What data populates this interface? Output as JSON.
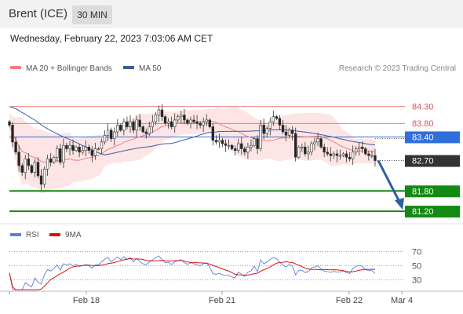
{
  "header": {
    "title": "Brent (ICE)",
    "timeframe": "30 MIN"
  },
  "subtitle": "Wednesday, February 22, 2023 7:03:06 AM CET",
  "colors": {
    "ma20": "#f08080",
    "band": "#fde0e0",
    "ma50": "#3a5f9f",
    "pivot": "#2f6fdb",
    "support": "#138a13",
    "resistance": "#e05050",
    "up_candle": "#ffffff",
    "down_candle": "#222222",
    "arrow": "#2f5f9f",
    "rsi": "#5b80d8",
    "rsi_ma": "#e01010"
  },
  "chart_data": [
    {
      "type": "candlestick",
      "legend": [
        {
          "name": "MA 20 + Bollinger Bands",
          "color": "#f08080"
        },
        {
          "name": "MA 50",
          "color": "#3a5f9f"
        }
      ],
      "credit": "Research © 2023 Trading Central",
      "ylim": [
        80.9,
        85.2
      ],
      "x_ticks": [
        "Feb 18",
        "Feb 21",
        "Feb 22",
        "Mar 4"
      ],
      "levels": [
        {
          "value": 84.3,
          "label": "84.30",
          "kind": "resistance"
        },
        {
          "value": 83.8,
          "label": "83.80",
          "kind": "resistance"
        },
        {
          "value": 83.4,
          "label": "83.40",
          "kind": "pivot"
        },
        {
          "value": 82.7,
          "label": "82.70",
          "kind": "last"
        },
        {
          "value": 81.8,
          "label": "81.80",
          "kind": "support"
        },
        {
          "value": 81.2,
          "label": "81.20",
          "kind": "support"
        }
      ],
      "closes": [
        83.75,
        83.25,
        82.95,
        82.55,
        82.35,
        82.75,
        82.55,
        82.35,
        82.65,
        82.25,
        82.0,
        82.45,
        82.75,
        82.65,
        82.8,
        83.05,
        82.65,
        83.15,
        83.05,
        83.15,
        83.0,
        83.1,
        82.95,
        83.0,
        83.1,
        83.0,
        82.85,
        83.05,
        83.05,
        83.25,
        83.45,
        83.6,
        83.35,
        83.55,
        83.75,
        83.6,
        83.85,
        83.7,
        83.85,
        83.6,
        83.9,
        83.7,
        83.55,
        83.5,
        83.7,
        83.85,
        84.05,
        84.2,
        84.0,
        83.8,
        83.85,
        83.7,
        83.9,
        84.0,
        84.05,
        83.9,
        83.8,
        83.9,
        83.85,
        83.8,
        83.75,
        83.85,
        83.9,
        83.7,
        83.3,
        83.25,
        83.3,
        83.2,
        83.15,
        83.15,
        83.05,
        83.0,
        83.2,
        83.05,
        82.95,
        83.1,
        83.15,
        83.35,
        83.05,
        83.75,
        83.5,
        83.65,
        83.85,
        84.0,
        83.95,
        83.75,
        83.55,
        83.45,
        83.6,
        83.5,
        82.8,
        83.1,
        83.1,
        82.9,
        82.95,
        83.2,
        83.25,
        83.35,
        83.1,
        82.95,
        82.9,
        82.85,
        82.9,
        82.85,
        82.85,
        82.9,
        82.8,
        82.75,
        82.95,
        83.05,
        83.1,
        83.05,
        82.9,
        82.85,
        82.85,
        82.7
      ],
      "projection": {
        "from": 82.7,
        "to": 81.2
      }
    },
    {
      "type": "line",
      "legend": [
        {
          "name": "RSI",
          "color": "#5b80d8"
        },
        {
          "name": "9MA",
          "color": "#e01010"
        }
      ],
      "y_ticks": [
        "70",
        "50",
        "30"
      ],
      "ylim": [
        15,
        85
      ]
    }
  ]
}
